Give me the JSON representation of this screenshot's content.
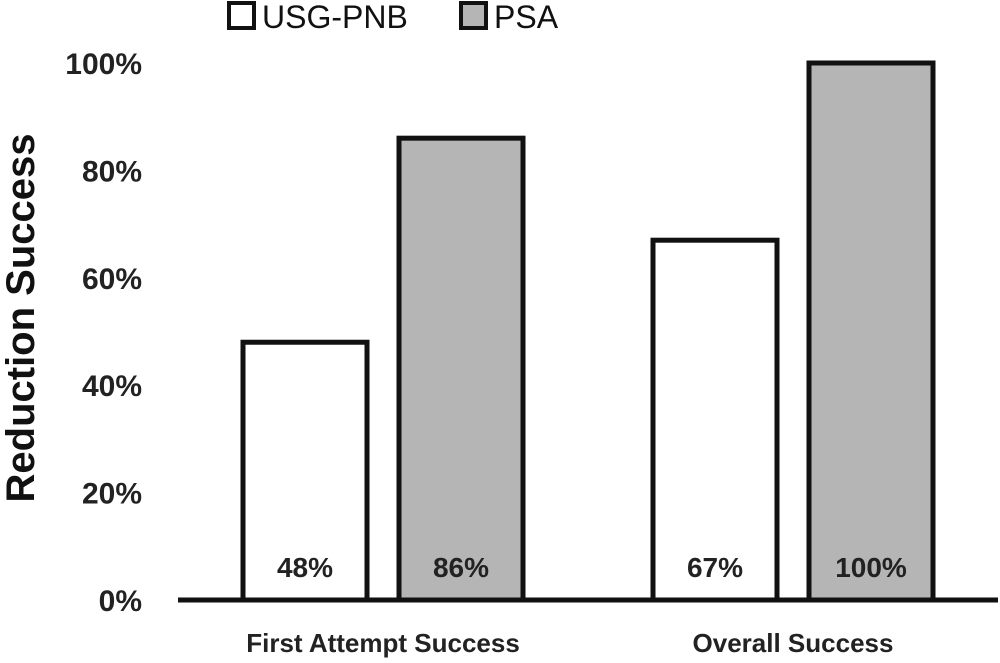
{
  "chart_data": {
    "type": "bar",
    "title": "",
    "xlabel": "",
    "ylabel": "Reduction Success",
    "ylim": [
      0,
      100
    ],
    "yticks": [
      "0%",
      "20%",
      "40%",
      "60%",
      "80%",
      "100%"
    ],
    "categories": [
      "First Attempt Success",
      "Overall Success"
    ],
    "series": [
      {
        "name": "USG-PNB",
        "values": [
          48,
          67
        ],
        "labels": [
          "48%",
          "67%"
        ],
        "color": "#ffffff"
      },
      {
        "name": "PSA",
        "values": [
          86,
          100
        ],
        "labels": [
          "86%",
          "100%"
        ],
        "color": "#b5b5b5"
      }
    ],
    "legend_position": "top",
    "grid": false
  }
}
